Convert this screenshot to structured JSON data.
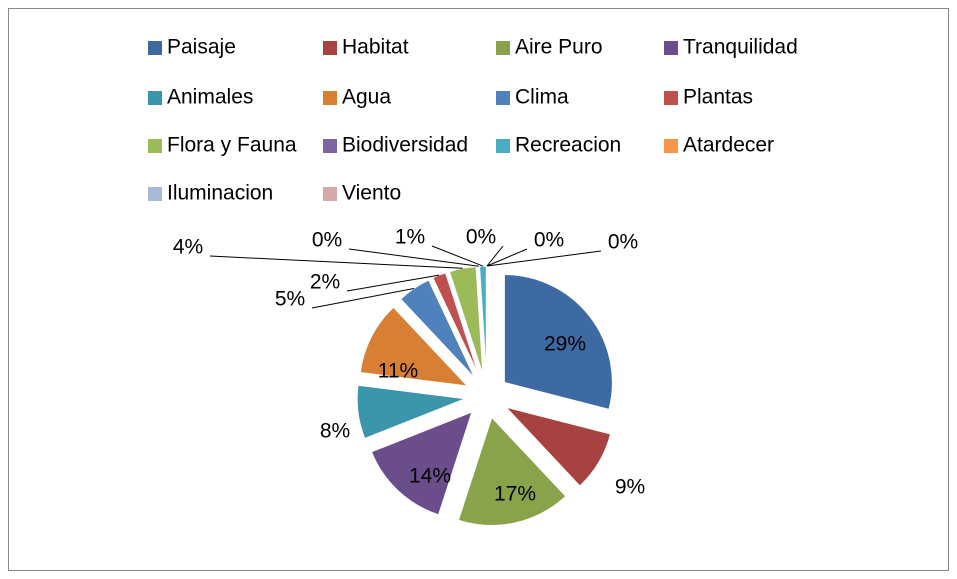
{
  "chart_data": {
    "type": "pie",
    "categories": [
      "Paisaje",
      "Habitat",
      "Aire Puro",
      "Tranquilidad",
      "Animales",
      "Agua",
      "Clima",
      "Plantas",
      "Flora y Fauna",
      "Biodiversidad",
      "Recreacion",
      "Atardecer",
      "Iluminacion",
      "Viento"
    ],
    "values": [
      29,
      9,
      17,
      14,
      8,
      11,
      5,
      2,
      4,
      0,
      1,
      0,
      0,
      0
    ],
    "value_labels": [
      "29%",
      "9%",
      "17%",
      "14%",
      "8%",
      "11%",
      "5%",
      "2%",
      "4%",
      "0%",
      "1%",
      "0%",
      "0%",
      "0%"
    ],
    "colors": [
      "#3d6aa2",
      "#a84240",
      "#88a34a",
      "#6a4d8a",
      "#3b95ab",
      "#d87f33",
      "#4f81bd",
      "#c0504d",
      "#9bbb59",
      "#8064a2",
      "#4bacc6",
      "#f79646",
      "#a8b9d8",
      "#d8a8a8"
    ],
    "legend": "top"
  }
}
